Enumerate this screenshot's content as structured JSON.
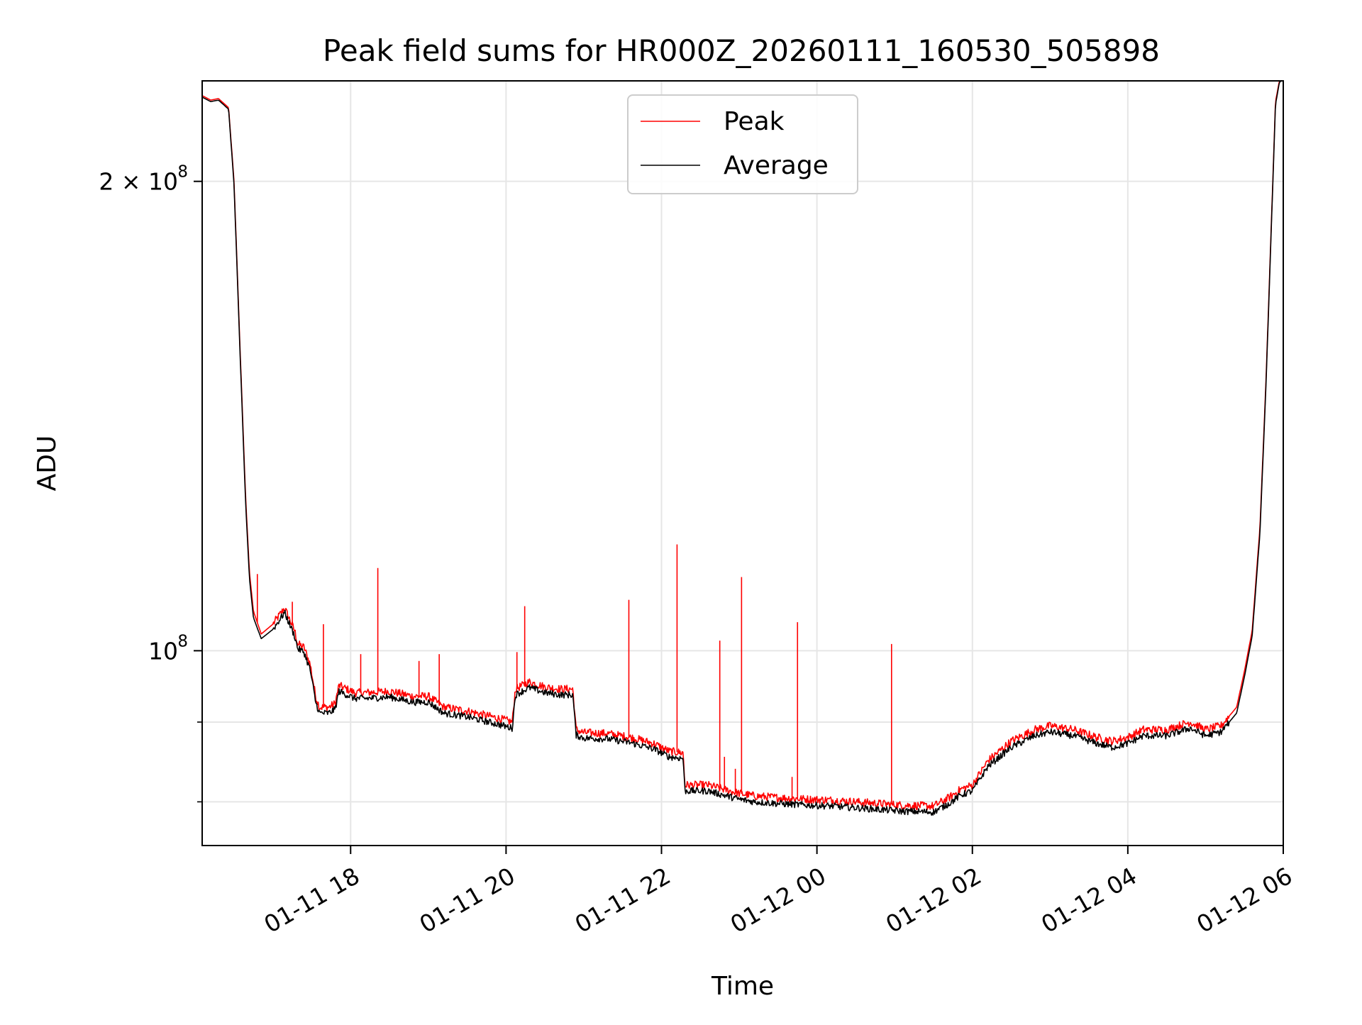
{
  "chart_data": {
    "type": "line",
    "title": "Peak field sums for HR000Z_20260111_160530_505898",
    "xlabel": "Time",
    "ylabel": "ADU",
    "x_unit": "hours since 2026-01-11 16:00",
    "xlim": [
      0.09,
      14.0
    ],
    "ylim": [
      75000000,
      232000000
    ],
    "yscale": "log",
    "grid": true,
    "legend_position": "top-center",
    "x_ticks": [
      {
        "value": 2,
        "label": "01-11 18"
      },
      {
        "value": 4,
        "label": "01-11 20"
      },
      {
        "value": 6,
        "label": "01-11 22"
      },
      {
        "value": 8,
        "label": "01-12 00"
      },
      {
        "value": 10,
        "label": "01-12 02"
      },
      {
        "value": 12,
        "label": "01-12 04"
      },
      {
        "value": 14,
        "label": "01-12 06"
      }
    ],
    "y_major_ticks": [
      {
        "value": 100000000,
        "label": "10",
        "exponent": "8"
      },
      {
        "value": 200000000,
        "label": "2 × 10",
        "exponent": "8"
      }
    ],
    "y_minor_ticks": [
      80000000,
      90000000
    ],
    "colors": {
      "peak": "#ff0000",
      "average": "#000000",
      "grid": "#e6e6e6"
    },
    "series": [
      {
        "name": "Peak",
        "color": "#ff0000",
        "x": [
          0.09,
          0.2,
          0.3,
          0.43,
          0.5,
          0.58,
          0.65,
          0.7,
          0.75,
          0.85,
          1.0,
          1.15,
          1.28,
          1.32,
          1.4,
          1.48,
          1.55,
          1.6,
          1.72,
          1.8,
          1.85,
          1.95,
          2.05,
          2.12,
          2.2,
          2.5,
          2.8,
          3.0,
          3.2,
          3.5,
          3.9,
          4.08,
          4.12,
          4.3,
          4.5,
          4.7,
          4.86,
          4.9,
          5.0,
          5.3,
          5.6,
          5.9,
          6.1,
          6.28,
          6.3,
          6.6,
          6.8,
          7.0,
          7.2,
          7.5,
          7.7,
          7.9,
          8.2,
          8.5,
          8.8,
          9.1,
          9.5,
          9.7,
          9.85,
          10.0,
          10.2,
          10.5,
          10.8,
          11.0,
          11.3,
          11.6,
          11.8,
          12.0,
          12.2,
          12.5,
          12.8,
          13.0,
          13.2,
          13.4,
          13.5,
          13.6,
          13.7,
          13.78,
          13.85,
          13.9,
          13.95,
          14.0
        ],
        "y": [
          227000000,
          225500000,
          226000000,
          223000000,
          200000000,
          155000000,
          125000000,
          112000000,
          106000000,
          102500000,
          104000000,
          106500000,
          103000000,
          101000000,
          100500000,
          98000000,
          93500000,
          92000000,
          92000000,
          92500000,
          95000000,
          94500000,
          94000000,
          94000000,
          94000000,
          94200000,
          93500000,
          93500000,
          92000000,
          91500000,
          90500000,
          90000000,
          94500000,
          95500000,
          94800000,
          94500000,
          94500000,
          89000000,
          88600000,
          88500000,
          88000000,
          87200000,
          86200000,
          86000000,
          82000000,
          82000000,
          81500000,
          81000000,
          80700000,
          80500000,
          80400000,
          80300000,
          80200000,
          80000000,
          79800000,
          79600000,
          79500000,
          80500000,
          81500000,
          82000000,
          85000000,
          87500000,
          89000000,
          89500000,
          89000000,
          88000000,
          87500000,
          88000000,
          89000000,
          89000000,
          90000000,
          89000000,
          89500000,
          92000000,
          97000000,
          103000000,
          120000000,
          150000000,
          190000000,
          225000000,
          232000000,
          233000000
        ]
      },
      {
        "name": "Average",
        "color": "#000000",
        "x": [
          0.09,
          0.2,
          0.3,
          0.43,
          0.5,
          0.58,
          0.65,
          0.7,
          0.75,
          0.85,
          1.0,
          1.15,
          1.28,
          1.32,
          1.4,
          1.48,
          1.55,
          1.6,
          1.72,
          1.8,
          1.85,
          1.95,
          2.05,
          2.12,
          2.2,
          2.5,
          2.8,
          3.0,
          3.2,
          3.5,
          3.9,
          4.08,
          4.12,
          4.3,
          4.5,
          4.7,
          4.86,
          4.9,
          5.0,
          5.3,
          5.6,
          5.9,
          6.1,
          6.28,
          6.3,
          6.6,
          6.8,
          7.0,
          7.2,
          7.5,
          7.7,
          7.9,
          8.2,
          8.5,
          8.8,
          9.1,
          9.5,
          9.7,
          9.85,
          10.0,
          10.2,
          10.5,
          10.8,
          11.0,
          11.3,
          11.6,
          11.8,
          12.0,
          12.2,
          12.5,
          12.8,
          13.0,
          13.2,
          13.4,
          13.5,
          13.6,
          13.7,
          13.78,
          13.85,
          13.9,
          13.95,
          14.0
        ],
        "y": [
          226500000,
          225000000,
          225500000,
          222500000,
          199000000,
          154000000,
          124000000,
          111000000,
          105000000,
          101800000,
          103200000,
          105800000,
          102200000,
          100300000,
          99800000,
          97200000,
          92700000,
          91200000,
          91200000,
          91700000,
          94200000,
          93700000,
          93200000,
          93200000,
          93200000,
          93400000,
          92700000,
          92700000,
          91200000,
          90700000,
          89700000,
          89200000,
          93700000,
          94700000,
          94000000,
          93700000,
          93700000,
          88300000,
          87900000,
          87800000,
          87300000,
          86500000,
          85500000,
          85300000,
          81300000,
          81300000,
          80800000,
          80300000,
          80000000,
          79800000,
          79700000,
          79600000,
          79500000,
          79300000,
          79100000,
          78900000,
          78800000,
          79800000,
          80800000,
          81300000,
          84300000,
          86700000,
          88200000,
          88700000,
          88200000,
          87200000,
          86700000,
          87200000,
          88200000,
          88200000,
          89200000,
          88200000,
          88700000,
          91200000,
          96200000,
          102200000,
          119000000,
          149000000,
          189000000,
          224000000,
          231500000,
          232500000
        ]
      }
    ],
    "spikes": [
      {
        "x": 0.8,
        "y": 112000000
      },
      {
        "x": 1.25,
        "y": 107500000
      },
      {
        "x": 1.65,
        "y": 104000000
      },
      {
        "x": 2.13,
        "y": 99500000
      },
      {
        "x": 2.35,
        "y": 113000000
      },
      {
        "x": 2.88,
        "y": 98500000
      },
      {
        "x": 3.14,
        "y": 99500000
      },
      {
        "x": 4.14,
        "y": 99800000
      },
      {
        "x": 4.24,
        "y": 106800000
      },
      {
        "x": 5.58,
        "y": 107800000
      },
      {
        "x": 6.2,
        "y": 117000000
      },
      {
        "x": 6.75,
        "y": 101500000
      },
      {
        "x": 6.81,
        "y": 85500000
      },
      {
        "x": 6.95,
        "y": 84000000
      },
      {
        "x": 7.03,
        "y": 111500000
      },
      {
        "x": 7.68,
        "y": 83000000
      },
      {
        "x": 7.75,
        "y": 104300000
      },
      {
        "x": 8.96,
        "y": 101000000
      }
    ]
  },
  "legend": {
    "items": [
      {
        "label": "Peak",
        "color": "#ff0000"
      },
      {
        "label": "Average",
        "color": "#000000"
      }
    ]
  }
}
